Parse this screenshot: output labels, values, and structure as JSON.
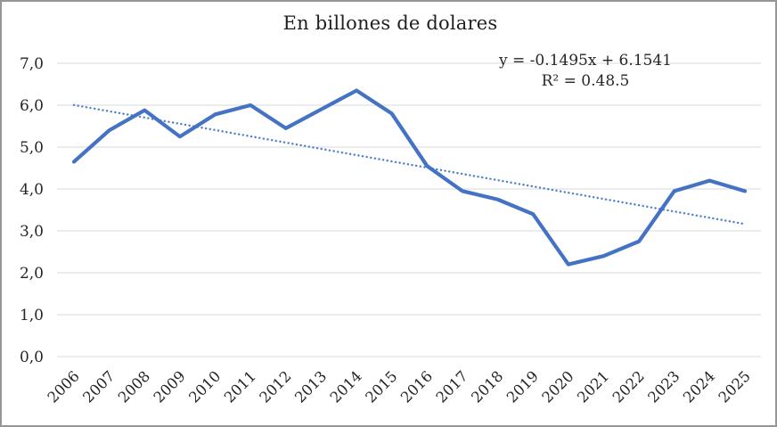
{
  "title": "En billones de dolares",
  "annotation": {
    "equation": "y = -0.1495x + 6.1541",
    "r_squared": "R² = 0.48.5"
  },
  "colors": {
    "line": "#4472C4",
    "trendline": "#4E80CC",
    "gridline": "#D9D9D9",
    "text": "#262626",
    "background": "#FFFFFF"
  },
  "chart_data": {
    "type": "line",
    "title": "En billones de dolares",
    "xlabel": "",
    "ylabel": "",
    "categories": [
      "2006",
      "2007",
      "2008",
      "2009",
      "2010",
      "2011",
      "2012",
      "2013",
      "2014",
      "2015",
      "2016",
      "2017",
      "2018",
      "2019",
      "2020",
      "2021",
      "2022",
      "2023",
      "2024",
      "2025"
    ],
    "series": [
      {
        "name": "En billones de dolares",
        "values": [
          4.65,
          5.4,
          5.88,
          5.25,
          5.78,
          6.0,
          5.45,
          5.9,
          6.35,
          5.8,
          4.55,
          3.95,
          3.75,
          3.4,
          2.2,
          2.4,
          2.75,
          3.95,
          4.2,
          3.95
        ]
      }
    ],
    "trendline": {
      "type": "linear",
      "slope": -0.1495,
      "intercept": 6.1541,
      "equation_label": "y = -0.1495x + 6.1541",
      "r_squared_label": "R² = 0.48.5",
      "style": "dotted"
    },
    "ylim": [
      0,
      7
    ],
    "ytick_step": 1.0,
    "ytick_labels": [
      "0,0",
      "1,0",
      "2,0",
      "3,0",
      "4,0",
      "5,0",
      "6,0",
      "7,0"
    ],
    "xtick_rotation_deg": 45,
    "grid": true,
    "legend": false
  }
}
